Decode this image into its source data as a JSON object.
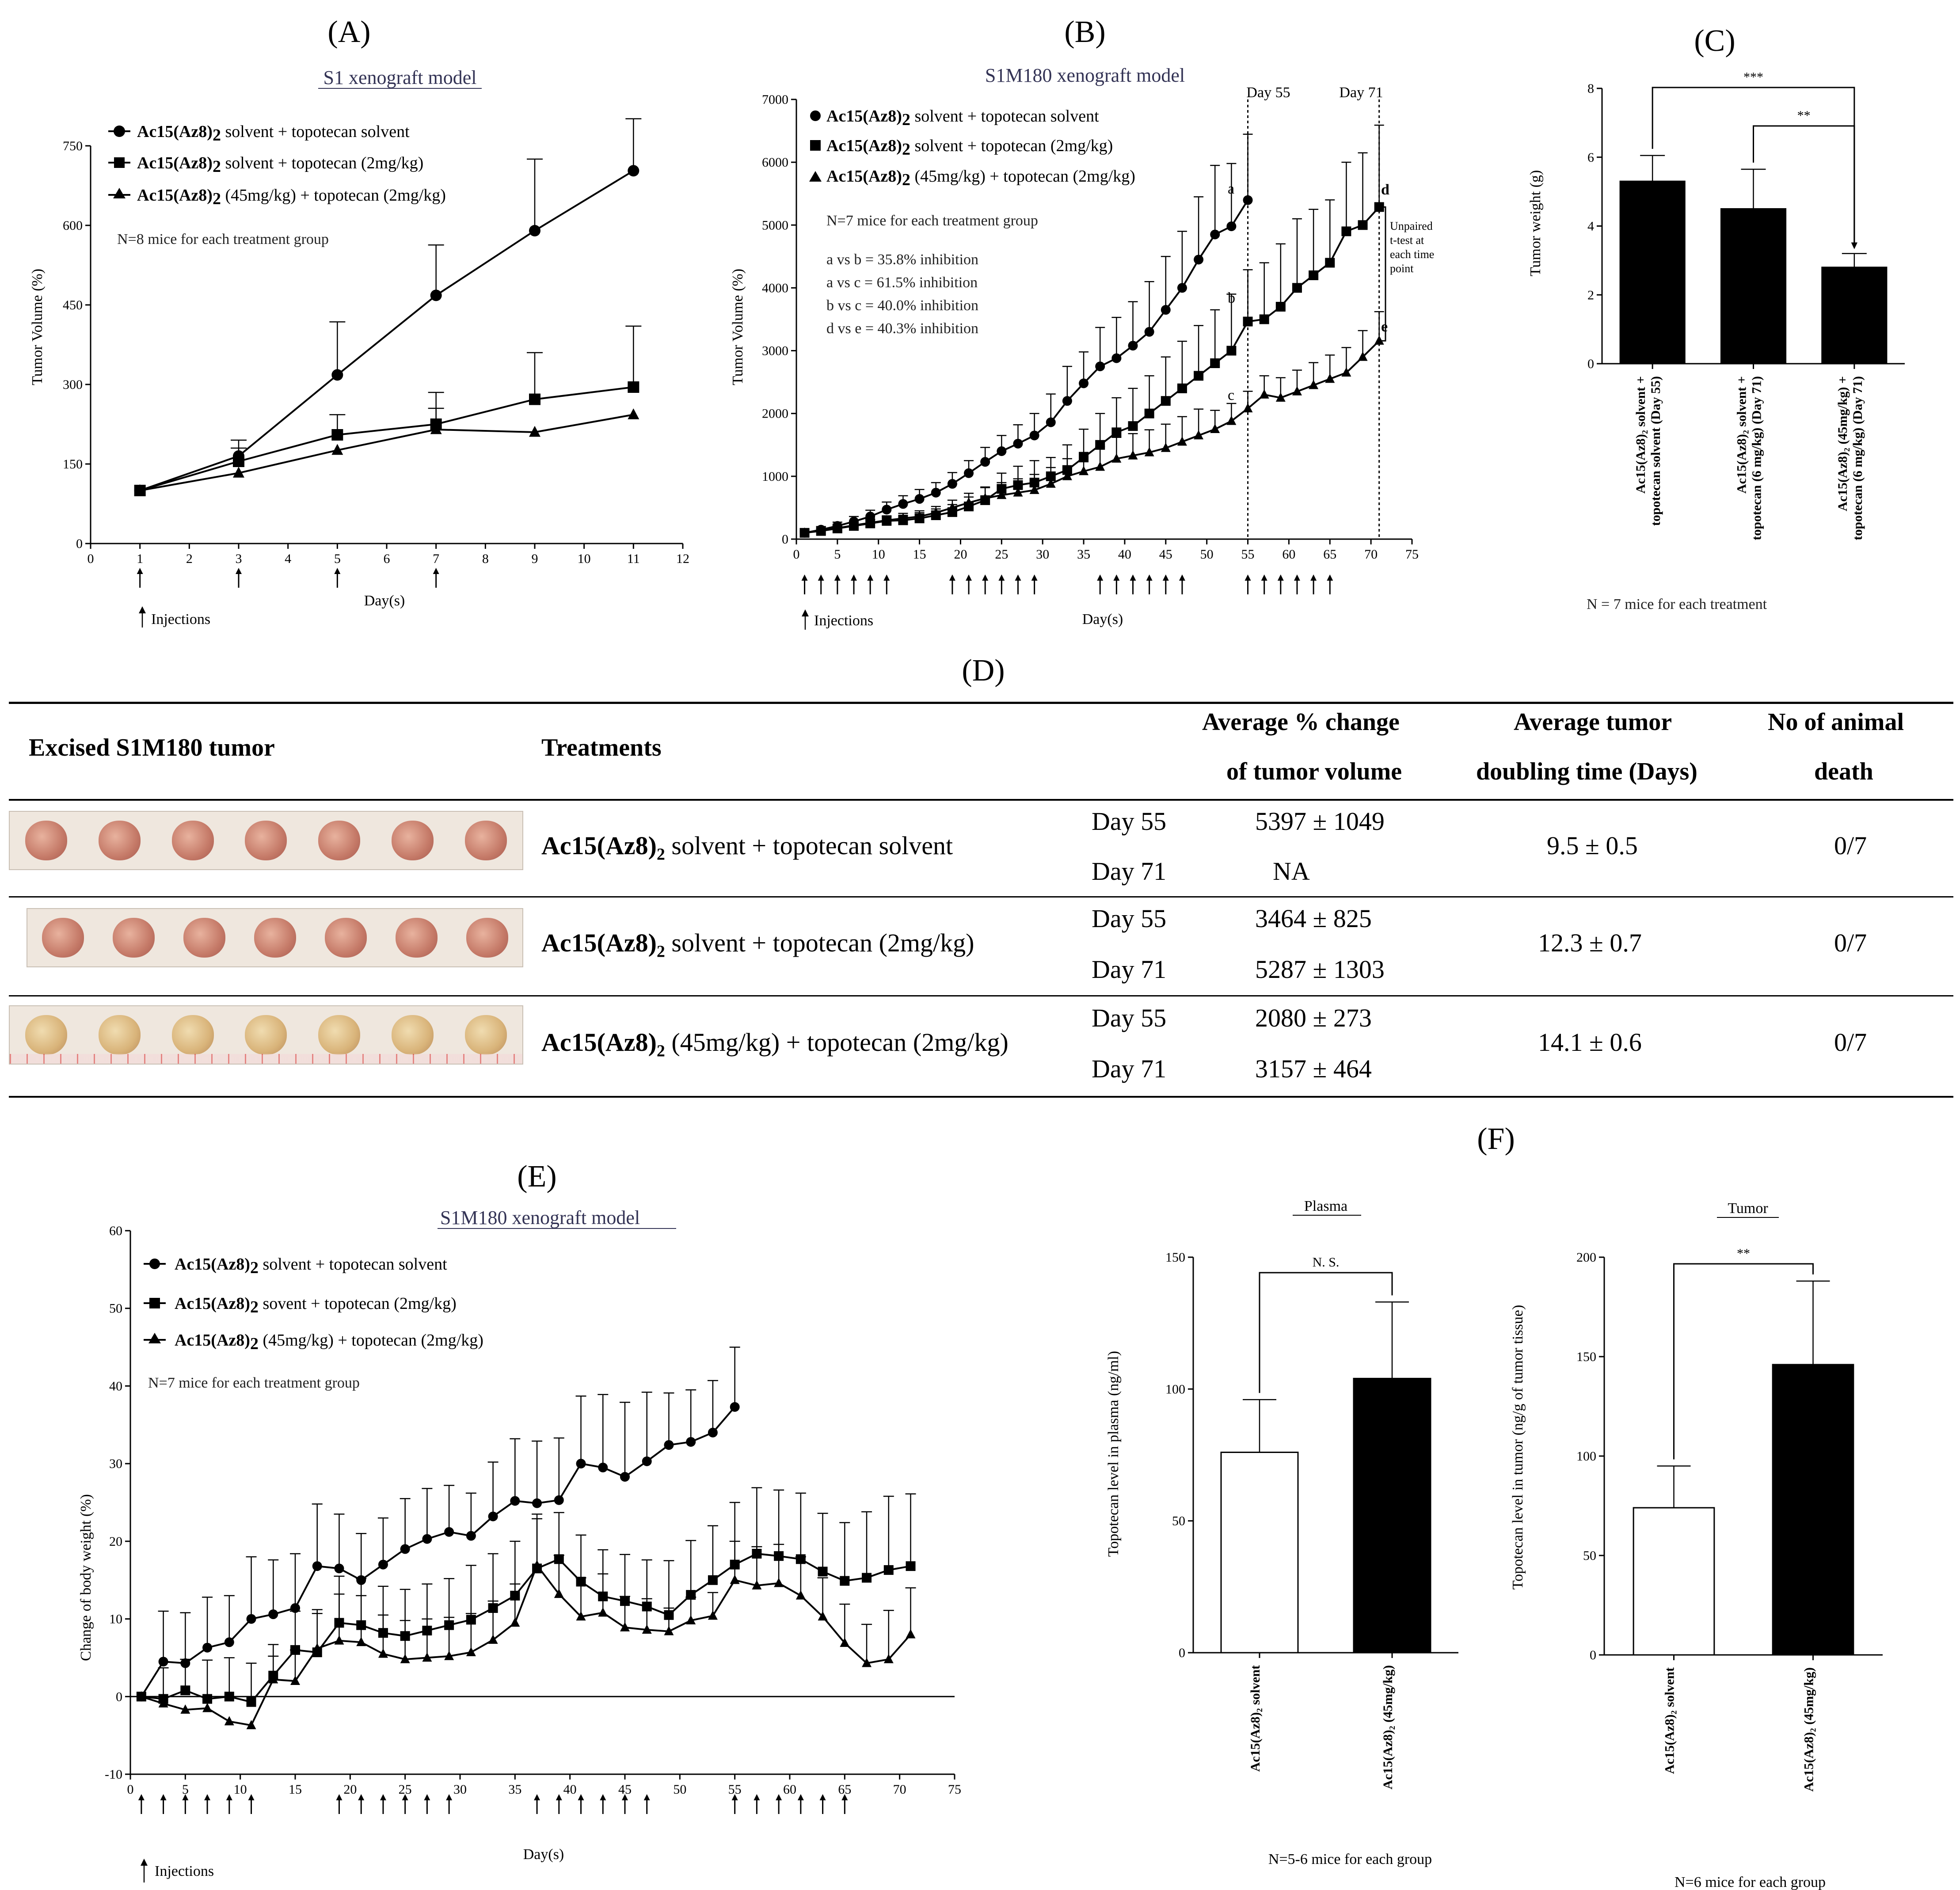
{
  "panels": {
    "A": {
      "label": "(A)",
      "subtitle": "S1 xenograft model"
    },
    "B": {
      "label": "(B)",
      "subtitle": "S1M180 xenograft model"
    },
    "C": {
      "label": "(C)"
    },
    "D": {
      "label": "(D)"
    },
    "E": {
      "label": "(E)",
      "subtitle": "S1M180 xenograft model"
    },
    "F": {
      "label": "(F)"
    }
  },
  "legend": {
    "prefix": "Ac15(Az8)",
    "sub2": "2",
    "g1": " solvent + topotecan solvent",
    "g2": " solvent + topotecan (2mg/kg)",
    "g2e": " sovent + topotecan (2mg/kg)",
    "g3": " (45mg/kg) + topotecan (2mg/kg)"
  },
  "notes": {
    "nA": "N=8 mice for each treatment group",
    "nB": "N=7 mice for each treatment group",
    "inhib": [
      "a vs b = 35.8% inhibition",
      "a vs c = 61.5% inhibition",
      "b vs c = 40.0% inhibition",
      "d vs e = 40.3% inhibition"
    ],
    "unpaired": [
      "Unpaired",
      "t-test at",
      "each time",
      "point"
    ],
    "day55": "Day 55",
    "day71": "Day 71",
    "injections": "Injections",
    "nE": "N=7 mice for each treatment group",
    "nC": "N =  7 mice for each treatment",
    "nF1": "N=5-6 mice for each group",
    "nF2": "N=6 mice for each group",
    "letters": {
      "a": "a",
      "b": "b",
      "c": "c",
      "d": "d",
      "e": "e"
    }
  },
  "chart_data": [
    {
      "id": "A",
      "type": "line",
      "title": "S1 xenograft model",
      "xlabel": "Day(s)",
      "ylabel": "Tumor  Volume (%)",
      "xlim": [
        0,
        12
      ],
      "ylim": [
        0,
        750
      ],
      "xticks": [
        0,
        1,
        2,
        3,
        4,
        5,
        6,
        7,
        8,
        9,
        10,
        11,
        12
      ],
      "yticks": [
        0,
        150,
        300,
        450,
        600,
        750
      ],
      "injection_days": [
        1,
        3,
        5,
        7
      ],
      "x": [
        1,
        3,
        5,
        7,
        9,
        11
      ],
      "series": [
        {
          "name": "Ac15(Az8)2 solvent + topotecan solvent",
          "marker": "circle",
          "values": [
            100,
            165,
            318,
            468,
            590,
            703
          ],
          "err": [
            0,
            30,
            100,
            95,
            135,
            98
          ]
        },
        {
          "name": "Ac15(Az8)2 solvent + topotecan (2mg/kg)",
          "marker": "square",
          "values": [
            100,
            155,
            205,
            225,
            272,
            295
          ],
          "err": [
            0,
            25,
            38,
            60,
            88,
            115
          ]
        },
        {
          "name": "Ac15(Az8)2 (45mg/kg) + topotecan (2mg/kg)",
          "marker": "triangle",
          "values": [
            100,
            133,
            176,
            215,
            210,
            243
          ],
          "err": [
            0,
            0,
            0,
            40,
            0,
            0
          ]
        }
      ]
    },
    {
      "id": "B",
      "type": "line",
      "title": "S1M180 xenograft model",
      "xlabel": "Day(s)",
      "ylabel": "Tumor  Volume (%)",
      "xlim": [
        0,
        75
      ],
      "ylim": [
        0,
        7000
      ],
      "xticks": [
        0,
        5,
        10,
        15,
        20,
        25,
        30,
        35,
        40,
        45,
        50,
        55,
        60,
        65,
        70,
        75
      ],
      "yticks": [
        0,
        1000,
        2000,
        3000,
        4000,
        5000,
        6000,
        7000
      ],
      "injection_days": [
        1,
        3,
        5,
        7,
        9,
        11,
        19,
        21,
        23,
        25,
        27,
        29,
        37,
        39,
        41,
        43,
        45,
        47,
        55,
        57,
        59,
        61,
        63,
        65
      ],
      "series": [
        {
          "name": "Ac15(Az8)2 solvent + topotecan solvent",
          "marker": "circle",
          "x": [
            1,
            3,
            5,
            7,
            9,
            11,
            13,
            15,
            17,
            19,
            21,
            23,
            25,
            27,
            29,
            31,
            33,
            35,
            37,
            39,
            41,
            43,
            45,
            47,
            49,
            51,
            53,
            55
          ],
          "values": [
            100,
            150,
            210,
            280,
            360,
            470,
            560,
            640,
            740,
            880,
            1050,
            1230,
            1400,
            1520,
            1650,
            1860,
            2200,
            2480,
            2750,
            2880,
            3080,
            3300,
            3650,
            4000,
            4450,
            4850,
            4980,
            5397
          ],
          "err": [
            30,
            50,
            60,
            80,
            100,
            120,
            130,
            150,
            160,
            180,
            200,
            230,
            250,
            300,
            350,
            450,
            550,
            500,
            620,
            650,
            700,
            800,
            850,
            900,
            1000,
            1100,
            1000,
            1049
          ]
        },
        {
          "name": "Ac15(Az8)2 solvent + topotecan (2mg/kg)",
          "marker": "square",
          "x": [
            1,
            3,
            5,
            7,
            9,
            11,
            13,
            15,
            17,
            19,
            21,
            23,
            25,
            27,
            29,
            31,
            33,
            35,
            37,
            39,
            41,
            43,
            45,
            47,
            49,
            51,
            53,
            55,
            57,
            59,
            61,
            63,
            65,
            67,
            69,
            71
          ],
          "values": [
            100,
            130,
            170,
            210,
            250,
            290,
            300,
            330,
            380,
            430,
            520,
            620,
            800,
            860,
            900,
            1000,
            1100,
            1300,
            1500,
            1700,
            1800,
            2000,
            2200,
            2400,
            2600,
            2800,
            3000,
            3464,
            3500,
            3700,
            4000,
            4200,
            4400,
            4900,
            5000,
            5287
          ],
          "err": [
            20,
            30,
            40,
            50,
            60,
            70,
            80,
            90,
            100,
            120,
            150,
            200,
            250,
            300,
            350,
            300,
            400,
            450,
            500,
            550,
            600,
            600,
            700,
            750,
            800,
            850,
            900,
            825,
            900,
            1000,
            1100,
            1050,
            1000,
            1100,
            1150,
            1303
          ]
        },
        {
          "name": "Ac15(Az8)2 (45mg/kg) + topotecan (2mg/kg)",
          "marker": "triangle",
          "x": [
            1,
            3,
            5,
            7,
            9,
            11,
            13,
            15,
            17,
            19,
            21,
            23,
            25,
            27,
            29,
            31,
            33,
            35,
            37,
            39,
            41,
            43,
            45,
            47,
            49,
            51,
            53,
            55,
            57,
            59,
            61,
            63,
            65,
            67,
            69,
            71
          ],
          "values": [
            100,
            140,
            175,
            220,
            260,
            300,
            330,
            360,
            420,
            500,
            580,
            650,
            700,
            740,
            780,
            880,
            1000,
            1080,
            1150,
            1280,
            1330,
            1380,
            1450,
            1550,
            1650,
            1750,
            1880,
            2080,
            2300,
            2250,
            2350,
            2450,
            2550,
            2650,
            2900,
            3157
          ],
          "err": [
            20,
            30,
            40,
            50,
            60,
            70,
            80,
            90,
            100,
            120,
            150,
            180,
            200,
            220,
            250,
            260,
            280,
            300,
            320,
            340,
            350,
            360,
            380,
            400,
            420,
            300,
            280,
            273,
            300,
            320,
            340,
            360,
            380,
            400,
            420,
            464
          ]
        }
      ]
    },
    {
      "id": "C",
      "type": "bar",
      "ylabel": "Tumor weight (g)",
      "ylim": [
        0,
        8
      ],
      "yticks": [
        0,
        2,
        4,
        6,
        8
      ],
      "categories": [
        "Ac15(Az8)2 solvent + topotecan solvent (Day 55)",
        "Ac15(Az8)2 solvent + topotecan (6 mg/kg)  (Day 71)",
        "Ac15(Az8)2 (45mg/kg) + topotecan (6 mg/kg)  (Day 71)"
      ],
      "cat_lines": [
        [
          "Ac15(Az8)₂ solvent +",
          "topotecan solvent (Day 55)"
        ],
        [
          "Ac15(Az8)₂ solvent +",
          "topotecan (6 mg/kg)  (Day 71)"
        ],
        [
          "Ac15(Az8)₂ (45mg/kg) +",
          "topotecan (6 mg/kg)  (Day 71)"
        ]
      ],
      "values": [
        5.3,
        4.5,
        2.8
      ],
      "err": [
        0.75,
        1.15,
        0.4
      ],
      "sig": [
        {
          "from": 0,
          "to": 2,
          "label": "***"
        },
        {
          "from": 1,
          "to": 2,
          "label": "**"
        }
      ]
    },
    {
      "id": "E",
      "type": "line",
      "title": "S1M180 xenograft model",
      "xlabel": "Day(s)",
      "ylabel": "Change of body weight (%)",
      "xlim": [
        0,
        75
      ],
      "ylim": [
        -10,
        60
      ],
      "xticks": [
        0,
        5,
        10,
        15,
        20,
        25,
        30,
        35,
        40,
        45,
        50,
        55,
        60,
        65,
        70,
        75
      ],
      "yticks": [
        -10,
        0,
        10,
        20,
        30,
        40,
        50,
        60
      ],
      "injection_days": [
        1,
        3,
        5,
        7,
        9,
        11,
        19,
        21,
        23,
        25,
        27,
        29,
        37,
        39,
        41,
        43,
        45,
        47,
        55,
        57,
        59,
        61,
        63,
        65
      ],
      "series": [
        {
          "name": "Ac15(Az8)2 solvent + topotecan solvent",
          "marker": "circle",
          "x": [
            1,
            3,
            5,
            7,
            9,
            11,
            13,
            15,
            17,
            19,
            21,
            23,
            25,
            27,
            29,
            31,
            33,
            35,
            37,
            39,
            41,
            43,
            45,
            47,
            49,
            51,
            53,
            55
          ],
          "values": [
            0,
            4.5,
            4.3,
            6.3,
            7,
            10,
            10.6,
            11.4,
            16.8,
            16.5,
            15,
            17,
            19,
            20.3,
            21.2,
            20.7,
            23.2,
            25.2,
            24.9,
            25.3,
            30,
            29.5,
            28.3,
            30.3,
            32.4,
            32.8,
            34,
            37.3
          ],
          "err": [
            0,
            6.5,
            6.5,
            6.5,
            6,
            8,
            7,
            7,
            8,
            7,
            6,
            6,
            6.5,
            6.5,
            6,
            5.5,
            7,
            8,
            8,
            8,
            8.7,
            9.4,
            9.6,
            8.9,
            6.7,
            6.7,
            6.7,
            7.7
          ]
        },
        {
          "name": "Ac15(Az8)2 sovent + topotecan (2mg/kg)",
          "marker": "square",
          "x": [
            1,
            3,
            5,
            7,
            9,
            11,
            13,
            15,
            17,
            19,
            21,
            23,
            25,
            27,
            29,
            31,
            33,
            35,
            37,
            39,
            41,
            43,
            45,
            47,
            49,
            51,
            53,
            55,
            57,
            59,
            61,
            63,
            65,
            67,
            69,
            71
          ],
          "values": [
            0,
            -0.3,
            0.8,
            -0.3,
            0,
            -0.7,
            2.7,
            6,
            5.7,
            9.5,
            9.2,
            8.2,
            7.8,
            8.5,
            9.2,
            9.9,
            11.4,
            13,
            16.5,
            17.7,
            14.8,
            12.9,
            12.3,
            11.6,
            10.5,
            13.1,
            15,
            17,
            18.4,
            18.1,
            17.7,
            16.1,
            14.9,
            15.3,
            16.3,
            16.8
          ],
          "err": [
            0,
            4,
            4,
            5,
            5,
            5,
            4,
            5,
            5,
            6,
            6,
            6,
            6,
            6,
            6,
            7,
            7,
            7,
            7,
            6,
            6,
            6,
            6,
            6,
            7,
            7,
            7,
            8,
            8.5,
            8.5,
            8.5,
            7.5,
            7.5,
            8.5,
            9.5,
            9.3
          ]
        },
        {
          "name": "Ac15(Az8)2 (45mg/kg) + topotecan (2mg/kg)",
          "marker": "triangle",
          "x": [
            1,
            3,
            5,
            7,
            9,
            11,
            13,
            15,
            17,
            19,
            21,
            23,
            25,
            27,
            29,
            31,
            33,
            35,
            37,
            39,
            41,
            43,
            45,
            47,
            49,
            51,
            53,
            55,
            57,
            59,
            61,
            63,
            65,
            67,
            69,
            71
          ],
          "values": [
            0,
            -0.9,
            -1.7,
            -1.5,
            -3.2,
            -3.7,
            2.2,
            2,
            6.2,
            7.2,
            7,
            5.5,
            4.8,
            5,
            5.2,
            5.7,
            7.3,
            9.5,
            16.9,
            13.2,
            10.3,
            10.8,
            8.9,
            8.6,
            8.4,
            9.8,
            10.4,
            15,
            14.3,
            14.6,
            13,
            10.3,
            6.9,
            4.3,
            4.8,
            8
          ],
          "err": [
            0,
            0,
            0,
            0,
            0,
            0,
            3,
            4,
            5,
            6,
            6,
            5,
            5,
            5,
            5,
            5,
            5,
            5,
            6,
            5,
            5,
            5,
            4,
            4,
            3,
            3,
            3,
            5,
            5,
            5,
            5,
            5,
            5,
            5,
            6.3,
            6
          ]
        }
      ]
    },
    {
      "id": "F-plasma",
      "type": "bar",
      "title": "Plasma",
      "ylabel": "Topotecan level in plasma (ng/ml)",
      "ylim": [
        0,
        150
      ],
      "yticks": [
        0,
        50,
        100,
        150
      ],
      "categories": [
        "Ac15(Az8)2 solvent",
        "Ac15(Az8)2 (45mg/kg)"
      ],
      "values": [
        76,
        104
      ],
      "err": [
        20,
        29
      ],
      "fills": [
        "#ffffff",
        "#000000"
      ],
      "sig": [
        {
          "from": 0,
          "to": 1,
          "label": "N. S."
        }
      ]
    },
    {
      "id": "F-tumor",
      "type": "bar",
      "title": "Tumor",
      "ylabel": "Topotecan level in tumor (ng/g of tumor tissue)",
      "ylim": [
        0,
        200
      ],
      "yticks": [
        0,
        50,
        100,
        150,
        200
      ],
      "categories": [
        "Ac15(Az8)2 solvent",
        "Ac15(Az8)2 (45mg/kg)"
      ],
      "values": [
        74,
        146
      ],
      "err": [
        21,
        42
      ],
      "fills": [
        "#ffffff",
        "#000000"
      ],
      "sig": [
        {
          "from": 0,
          "to": 1,
          "label": "**"
        }
      ]
    }
  ],
  "tableD": {
    "headers": {
      "tumor": "Excised S1M180 tumor",
      "treat": "Treatments",
      "avg1": "Average % change",
      "avg2": "of tumor volume",
      "dbl1": "Average tumor",
      "dbl2": "doubling time (Days)",
      "death1": "No of animal",
      "death2": "death"
    },
    "rows": [
      {
        "treat_tail": " solvent + topotecan solvent",
        "d1": "Day 55",
        "v1": "5397 ± 1049",
        "d2": "Day 71",
        "v2": "NA",
        "doubling": "9.5  ±  0.5",
        "death": "0/7"
      },
      {
        "treat_tail": " solvent + topotecan (2mg/kg)",
        "d1": "Day 55",
        "v1": "3464 ± 825",
        "d2": "Day 71",
        "v2": "5287 ± 1303",
        "doubling": "12.3  ±  0.7",
        "death": "0/7"
      },
      {
        "treat_tail": " (45mg/kg) + topotecan (2mg/kg)",
        "d1": "Day 55",
        "v1": "2080 ± 273",
        "d2": "Day 71",
        "v2": "3157 ± 464",
        "doubling": "14.1  ±  0.6",
        "death": "0/7"
      }
    ]
  }
}
